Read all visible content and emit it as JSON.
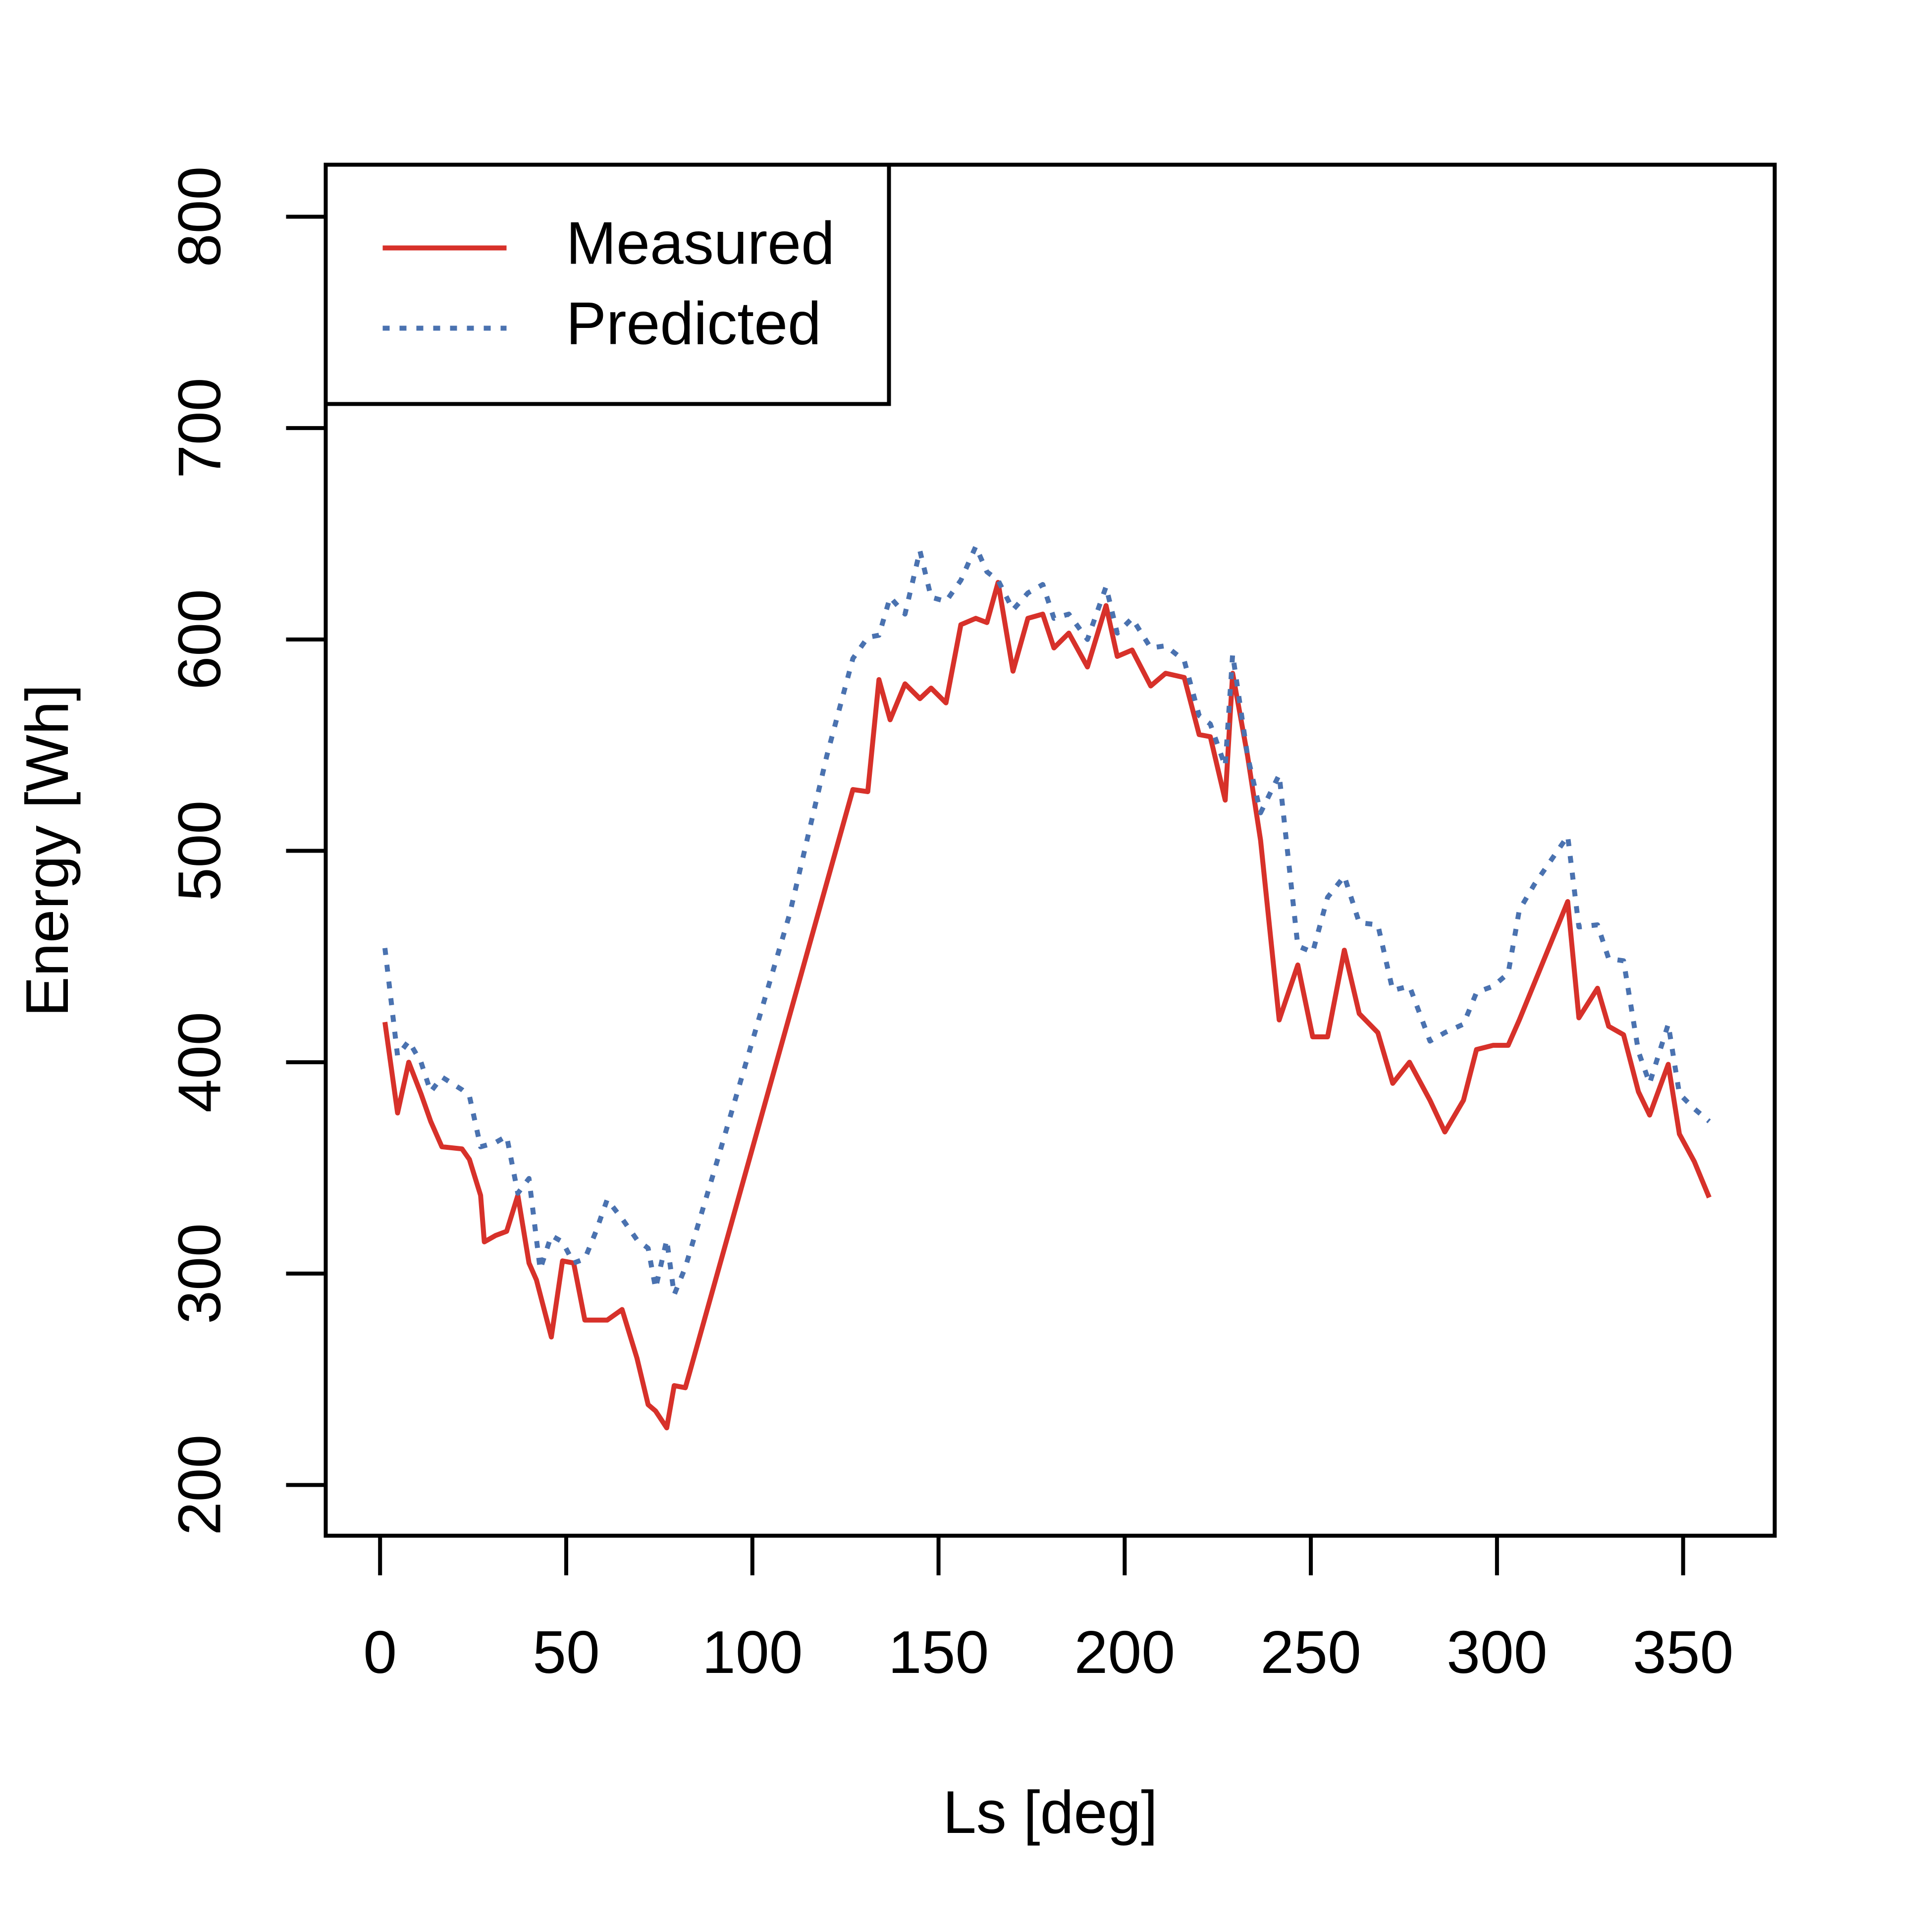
{
  "chart_data": {
    "type": "line",
    "xlabel": "Ls [deg]",
    "ylabel": "Energy [Wh]",
    "xlim": [
      -14.6,
      374.6
    ],
    "xticks": [
      0,
      50,
      100,
      150,
      200,
      250,
      300,
      350
    ],
    "ylim": [
      176,
      824.6
    ],
    "yticks": [
      200,
      300,
      400,
      500,
      600,
      700,
      800
    ],
    "legend": "top-left",
    "series": [
      {
        "name": "Measured",
        "color": "#d7312a",
        "linestyle": "solid",
        "x": [
          1.3,
          4.7,
          7.7,
          11,
          13.6,
          16.6,
          22,
          24,
          27,
          28,
          31,
          34,
          37,
          40,
          42,
          46,
          49,
          52,
          55,
          58,
          61,
          65,
          69,
          72,
          74,
          77,
          79,
          82,
          127,
          131,
          134,
          137,
          141,
          145,
          148,
          152,
          156,
          160,
          163,
          166,
          170,
          174,
          178,
          181,
          185,
          190,
          195,
          198,
          202,
          207,
          211,
          216,
          220,
          223,
          227,
          229,
          233,
          236.5,
          241.5,
          246.5,
          250.5,
          254.5,
          259,
          263,
          268,
          272,
          276.5,
          282,
          286,
          291,
          294.5,
          299,
          303,
          306,
          319,
          322,
          327,
          330,
          334,
          338,
          341,
          346,
          349,
          353,
          357
        ],
        "values": [
          419,
          376,
          400,
          385,
          372,
          360,
          359,
          354,
          337,
          315,
          318,
          320,
          337,
          305,
          297,
          270,
          306,
          305,
          278,
          278,
          278,
          283,
          260,
          238,
          235,
          227,
          247,
          246,
          529,
          528,
          581,
          562,
          579,
          572,
          577,
          570,
          607,
          610,
          608,
          627,
          585,
          610,
          612,
          596,
          603,
          587,
          616,
          592,
          595,
          578,
          584,
          582,
          555,
          554,
          524,
          584,
          545,
          505,
          420,
          446,
          412,
          412,
          453,
          423,
          414,
          390,
          400,
          382,
          367,
          382,
          406,
          408,
          408,
          420,
          476,
          421,
          435,
          417,
          413,
          386,
          375,
          399,
          366,
          353,
          336
        ]
      },
      {
        "name": "Predicted",
        "color": "#4a72b0",
        "linestyle": "dotted",
        "x": [
          1.3,
          4.7,
          7.7,
          11,
          13.6,
          16.6,
          22,
          24,
          27,
          31,
          34,
          37,
          40,
          43,
          46,
          49,
          52,
          55,
          58,
          61,
          65,
          69,
          72,
          74,
          77,
          79,
          82,
          90,
          100,
          110,
          120,
          127,
          131,
          134,
          137,
          141,
          145,
          148,
          152,
          156,
          160,
          163,
          166,
          170,
          174,
          178,
          181,
          185,
          190,
          195,
          198,
          202,
          207,
          211,
          216,
          220,
          223,
          227,
          229,
          233,
          236.5,
          241.5,
          246.5,
          250.5,
          254.5,
          259,
          263,
          268,
          272,
          276.5,
          282,
          286,
          291,
          294.5,
          299,
          303,
          306,
          310,
          319,
          322,
          327,
          330,
          334,
          338,
          341,
          346,
          349,
          353,
          357
        ],
        "values": [
          454,
          403,
          410,
          400,
          386,
          393,
          387,
          384,
          360,
          362,
          365,
          338,
          345,
          302,
          318,
          315,
          305,
          307,
          320,
          335,
          326,
          316,
          312,
          293,
          316,
          290,
          303,
          350,
          410,
          470,
          545,
          591,
          601,
          602,
          620,
          612,
          642,
          620,
          618,
          628,
          644,
          632,
          628,
          614,
          622,
          626,
          610,
          612,
          600,
          625,
          603,
          610,
          596,
          597,
          590,
          564,
          560,
          540,
          593,
          545,
          518,
          536,
          455,
          452,
          478,
          488,
          466,
          465,
          434,
          436,
          410,
          414,
          418,
          433,
          436,
          442,
          472,
          484,
          507,
          464,
          465,
          449,
          448,
          405,
          390,
          418,
          385,
          378,
          372
        ]
      }
    ]
  }
}
